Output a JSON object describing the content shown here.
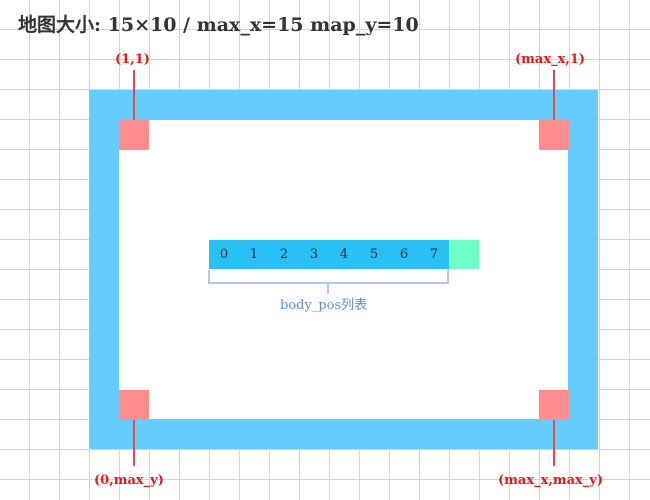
{
  "title": "地图大小: 15×10 / max_x=15 map_y=10",
  "corners": {
    "top_left": "(1,1)",
    "top_right": "(max_x,1)",
    "bottom_left": "(0,max_y)",
    "bottom_right": "(max_x,max_y)"
  },
  "body_pos": {
    "cells": [
      "0",
      "1",
      "2",
      "3",
      "4",
      "5",
      "6",
      "7"
    ],
    "label": "body_pos列表"
  },
  "colors": {
    "wall": "#66ccff",
    "corner": "#ff8d8d",
    "corner_label": "#e81616",
    "body": "#29c0f5",
    "head": "#6effc8",
    "bracket": "#b3c8ee",
    "bracket_label": "#5b8ee0"
  }
}
